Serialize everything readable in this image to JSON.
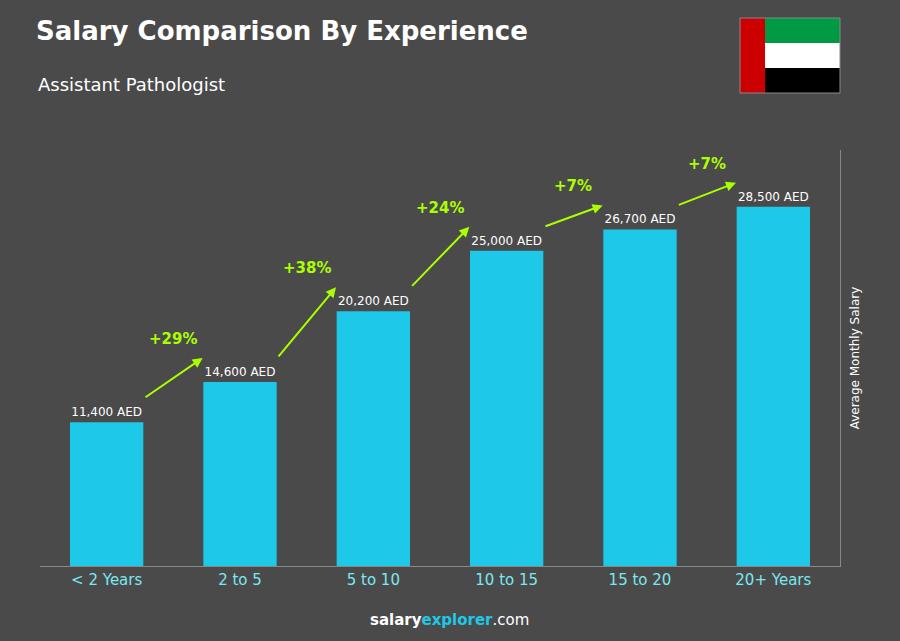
{
  "chart_data": {
    "type": "bar",
    "title": "Salary Comparison By Experience",
    "subtitle": "Assistant Pathologist",
    "ylabel": "Average Monthly Salary",
    "categories": [
      "< 2 Years",
      "2 to 5",
      "5 to 10",
      "10 to 15",
      "15 to 20",
      "20+ Years"
    ],
    "values": [
      11400,
      14600,
      20200,
      25000,
      26700,
      28500
    ],
    "value_labels": [
      "11,400 AED",
      "14,600 AED",
      "20,200 AED",
      "25,000 AED",
      "26,700 AED",
      "28,500 AED"
    ],
    "data_labels": true,
    "color": "#1EC8E8",
    "annotations": [
      {
        "text": "+29%",
        "color": "#aaff00"
      },
      {
        "text": "+38%",
        "color": "#aaff00"
      },
      {
        "text": "+24%",
        "color": "#aaff00"
      },
      {
        "text": "+7%",
        "color": "#aaff00"
      },
      {
        "text": "+7%",
        "color": "#aaff00"
      }
    ],
    "ylim": [
      0,
      33000
    ],
    "tick_labels": "x",
    "grid": false,
    "footer": [
      {
        "text": "salary",
        "color": "#ffffff"
      },
      {
        "text": "explorer",
        "color": "#1EC8E8"
      },
      {
        "text": ".com",
        "color": "#ffffff"
      }
    ],
    "background": "#4a4a4a"
  }
}
